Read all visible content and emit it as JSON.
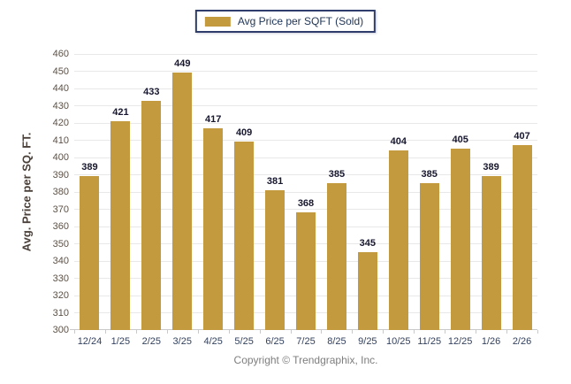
{
  "chart_data": {
    "type": "bar",
    "title": "",
    "xlabel": "",
    "ylabel": "Avg. Price per SQ. FT.",
    "legend": [
      {
        "label": "Avg Price per SQFT (Sold)",
        "color": "#C49A3E"
      }
    ],
    "legend_position": "top-center",
    "categories": [
      "12/24",
      "1/25",
      "2/25",
      "3/25",
      "4/25",
      "5/25",
      "6/25",
      "7/25",
      "8/25",
      "9/25",
      "10/25",
      "11/25",
      "12/25",
      "1/26",
      "2/26"
    ],
    "values": [
      389,
      421,
      433,
      449,
      417,
      409,
      381,
      368,
      385,
      345,
      404,
      385,
      405,
      389,
      407
    ],
    "ylim": [
      300,
      460
    ],
    "ytick_step": 10,
    "grid": "horizontal",
    "bar_color": "#C49A3E"
  },
  "colors": {
    "bar": "#C49A3E",
    "legend_border": "#2E3D6B",
    "legend_text": "#1F3455",
    "value_label": "#17172F",
    "x_label": "#33415E",
    "y_label": "#5C5147",
    "y_title": "#4A4039",
    "gridline": "#E8E8E8",
    "axis_line": "#C9C9C9",
    "copyright_text": "#7E7E7E"
  },
  "footer": {
    "copyright": "Copyright © Trendgraphix, Inc."
  }
}
